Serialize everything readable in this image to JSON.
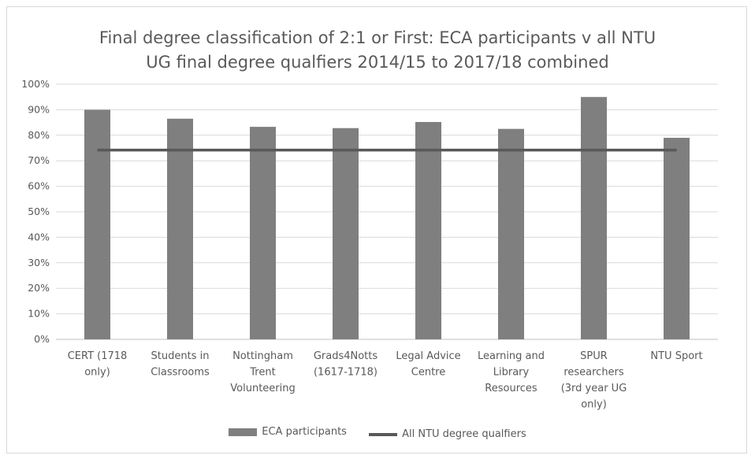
{
  "chart_data": {
    "type": "bar",
    "title_lines": [
      "Final degree classification of 2:1 or First: ECA participants v all NTU",
      "UG final degree qualfiers 2014/15 to 2017/18 combined"
    ],
    "categories": [
      [
        "CERT (1718",
        "only)"
      ],
      [
        "Students in",
        "Classrooms"
      ],
      [
        "Nottingham",
        "Trent",
        "Volunteering"
      ],
      [
        "Grads4Notts",
        "(1617-1718)"
      ],
      [
        "Legal Advice",
        "Centre"
      ],
      [
        "Learning and",
        "Library",
        "Resources"
      ],
      [
        "SPUR",
        "researchers",
        "(3rd year UG",
        "only)"
      ],
      [
        "NTU Sport"
      ]
    ],
    "series": [
      {
        "name": "ECA participants",
        "type": "bar",
        "values": [
          90,
          86.5,
          83.3,
          82.8,
          85.2,
          82.5,
          95,
          79
        ],
        "color": "#7f7f7f"
      },
      {
        "name": "All NTU degree qualfiers",
        "type": "line",
        "values": [
          74.2,
          74.2,
          74.2,
          74.2,
          74.2,
          74.2,
          74.2,
          74.2
        ],
        "color": "#595959"
      }
    ],
    "ylim": [
      0,
      100
    ],
    "yticks": [
      "0%",
      "10%",
      "20%",
      "30%",
      "40%",
      "50%",
      "60%",
      "70%",
      "80%",
      "90%",
      "100%"
    ],
    "grid": true,
    "legend_position": "bottom"
  }
}
